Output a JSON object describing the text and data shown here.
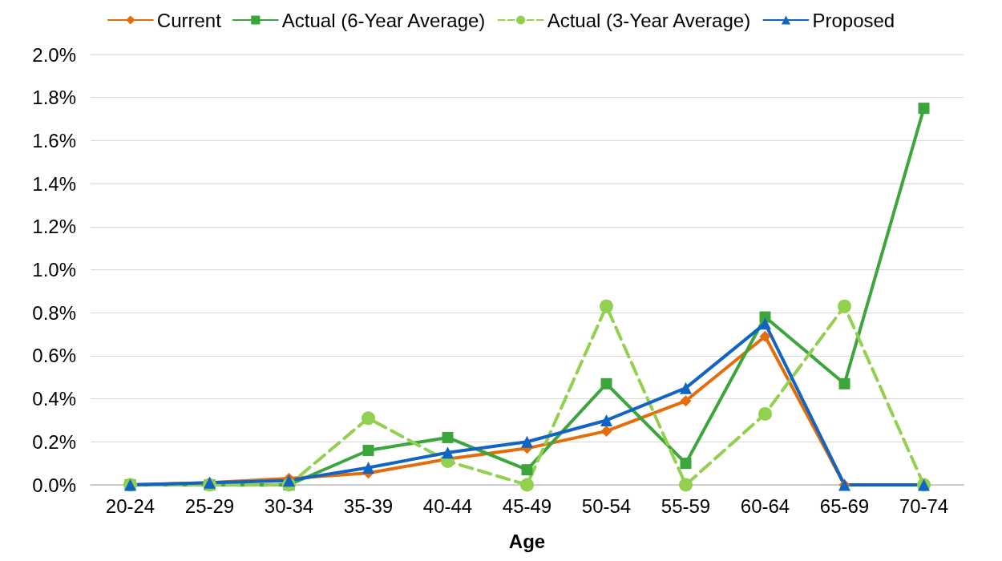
{
  "chart_data": {
    "type": "line",
    "xlabel": "Age",
    "categories": [
      "20-24",
      "25-29",
      "30-34",
      "35-39",
      "40-44",
      "45-49",
      "50-54",
      "55-59",
      "60-64",
      "65-69",
      "70-74"
    ],
    "series": [
      {
        "name": "Current",
        "color": "#e46c0a",
        "marker": "diamond",
        "line_style": "solid",
        "values": [
          0,
          0.01,
          0.03,
          0.055,
          0.12,
          0.17,
          0.25,
          0.39,
          0.69,
          0,
          0
        ]
      },
      {
        "name": "Actual (6-Year Average)",
        "color": "#3ca63c",
        "marker": "square",
        "line_style": "solid",
        "values": [
          0,
          0,
          0,
          0.16,
          0.22,
          0.07,
          0.47,
          0.1,
          0.78,
          0.47,
          1.75
        ]
      },
      {
        "name": "Actual (3-Year Average)",
        "color": "#92d050",
        "marker": "circle",
        "line_style": "dashed",
        "values": [
          0,
          0,
          0,
          0.31,
          0.11,
          0,
          0.83,
          0,
          0.33,
          0.83,
          0
        ]
      },
      {
        "name": "Proposed",
        "color": "#1164c4",
        "marker": "triangle",
        "line_style": "solid",
        "values": [
          0,
          0.01,
          0.02,
          0.08,
          0.15,
          0.2,
          0.3,
          0.45,
          0.75,
          0,
          0
        ]
      }
    ],
    "ylim": [
      0,
      2
    ],
    "yticks": [
      {
        "value": 0,
        "label": "0.0%"
      },
      {
        "value": 0.2,
        "label": "0.2%"
      },
      {
        "value": 0.4,
        "label": "0.4%"
      },
      {
        "value": 0.6,
        "label": "0.6%"
      },
      {
        "value": 0.8,
        "label": "0.8%"
      },
      {
        "value": 1,
        "label": "1.0%"
      },
      {
        "value": 1.2,
        "label": "1.2%"
      },
      {
        "value": 1.4,
        "label": "1.4%"
      },
      {
        "value": 1.6,
        "label": "1.6%"
      },
      {
        "value": 1.8,
        "label": "1.8%"
      },
      {
        "value": 2,
        "label": "2.0%"
      }
    ],
    "grid": "y",
    "legend": "top"
  }
}
